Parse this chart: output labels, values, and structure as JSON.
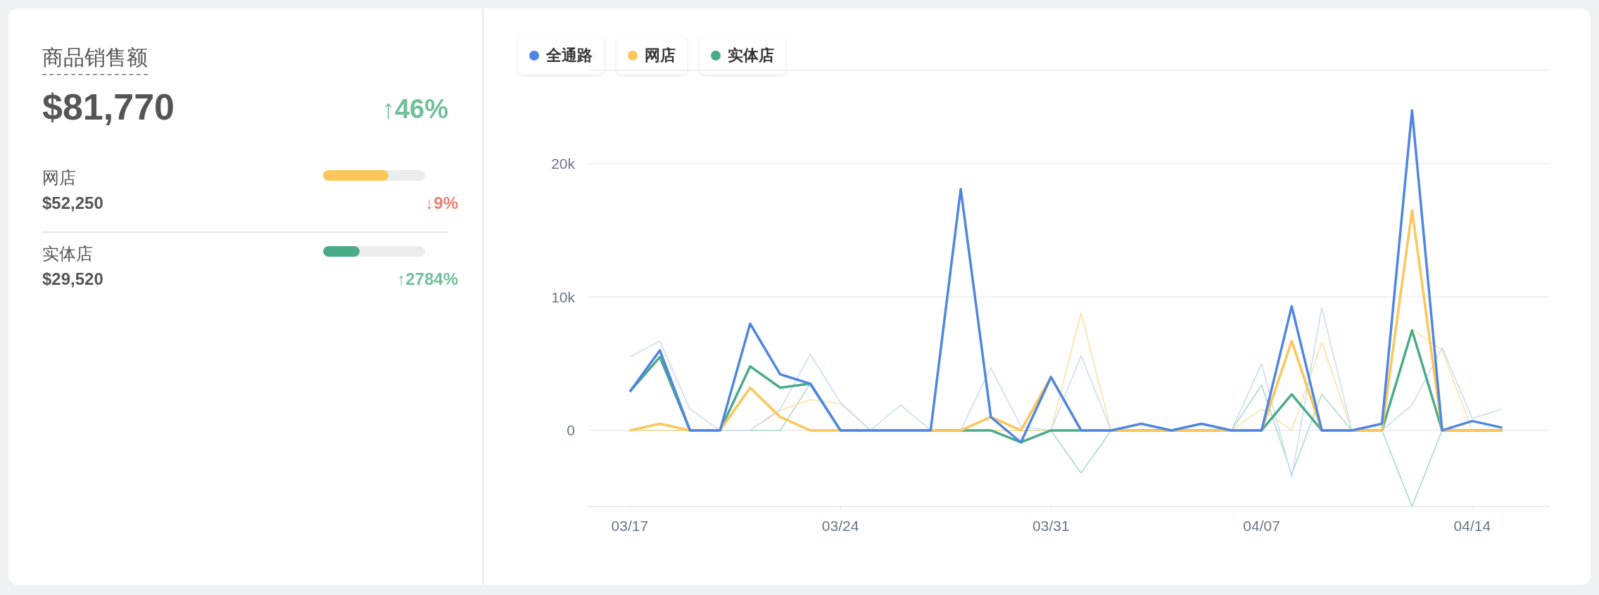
{
  "chart_data": [
    {
      "type": "other",
      "title": "商品销售额",
      "categories": [
        "网店",
        "实体店"
      ],
      "values": [
        52250,
        29520
      ],
      "value_labels": [
        "$52,250",
        "$29,520"
      ],
      "colors": [
        "#fcc65b",
        "#4aab88"
      ],
      "annotations": [
        "$81,770",
        "↑46%",
        "↓9%",
        "↑2784%"
      ]
    },
    {
      "type": "line",
      "categories": [
        "03/17",
        null,
        null,
        null,
        null,
        null,
        null,
        "03/24",
        null,
        null,
        null,
        null,
        null,
        null,
        "03/31",
        null,
        null,
        null,
        null,
        null,
        null,
        "04/07",
        null,
        null,
        null,
        null,
        null,
        null,
        "04/14",
        null
      ],
      "series": [
        {
          "name": "全通路",
          "color": "#4f86e0",
          "values": [
            2900,
            6000,
            0,
            0,
            8000,
            4200,
            3500,
            0,
            0,
            0,
            0,
            18100,
            1000,
            -900,
            4000,
            0,
            0,
            500,
            0,
            500,
            0,
            0,
            9300,
            0,
            0,
            500,
            24000,
            0,
            700,
            200
          ]
        },
        {
          "name": "网店",
          "color": "#fcc65b",
          "values": [
            0,
            500,
            0,
            0,
            3200,
            1000,
            0,
            0,
            0,
            0,
            0,
            0,
            1000,
            0,
            4000,
            0,
            0,
            0,
            0,
            0,
            0,
            0,
            6700,
            0,
            0,
            0,
            16500,
            0,
            0,
            0
          ]
        },
        {
          "name": "实体店",
          "color": "#4aab88",
          "values": [
            2900,
            5500,
            0,
            0,
            4800,
            3200,
            3500,
            0,
            0,
            0,
            0,
            0,
            0,
            -900,
            0,
            0,
            0,
            0,
            0,
            0,
            0,
            0,
            2700,
            0,
            0,
            0,
            7500,
            0,
            0,
            0
          ]
        },
        {
          "color": "#c9dcf7",
          "values": [
            5500,
            6700,
            1600,
            0,
            0,
            1600,
            5700,
            2100,
            0,
            1900,
            0,
            0,
            4700,
            300,
            0,
            5600,
            0,
            0,
            0,
            0,
            0,
            5000,
            -3500,
            9200,
            0,
            0,
            1900,
            6200,
            900,
            1600
          ]
        },
        {
          "color": "#fde0a2",
          "values": [
            0,
            0,
            0,
            0,
            0,
            1500,
            2300,
            2000,
            0,
            0,
            0,
            0,
            0,
            0,
            0,
            8800,
            0,
            0,
            0,
            0,
            0,
            1600,
            0,
            6600,
            0,
            0,
            7600,
            6000,
            0,
            0
          ]
        },
        {
          "color": "#a9dcc6",
          "values": [
            0,
            0,
            0,
            0,
            0,
            0,
            3500,
            0,
            0,
            0,
            0,
            0,
            0,
            0,
            0,
            -3200,
            0,
            0,
            0,
            0,
            0,
            3400,
            -3300,
            2700,
            0,
            0,
            -5700,
            0,
            0,
            0
          ]
        }
      ],
      "ylim": [
        -5700,
        27000
      ],
      "yticks": [
        0,
        {
          "value": 10000,
          "label": "10k"
        },
        {
          "value": 20000,
          "label": "20k"
        }
      ],
      "grid": "y",
      "legend": "top left",
      "marker": "none"
    }
  ]
}
